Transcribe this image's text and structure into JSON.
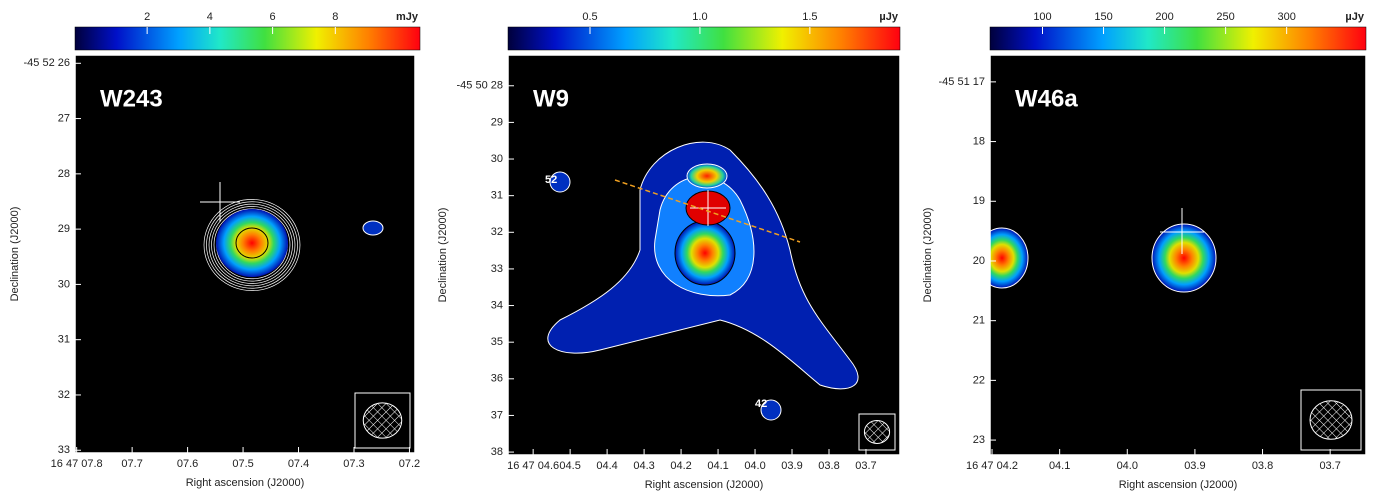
{
  "chart_data": [
    {
      "type": "image",
      "label": "W243",
      "x_label": "Right ascension (J2000)",
      "y_label": "Declination (J2000)",
      "colorbar_unit": "mJy",
      "clim": [
        -0.3,
        10.7
      ],
      "colorbar_ticks": [
        2,
        4,
        6,
        8
      ],
      "xlim": [
        7.803,
        7.19
      ],
      "xticks": [
        {
          "value": 7.8,
          "label": "16 47 07.8"
        },
        {
          "value": 7.7,
          "label": "07.7"
        },
        {
          "value": 7.6,
          "label": "07.6"
        },
        {
          "value": 7.5,
          "label": "07.5"
        },
        {
          "value": 7.4,
          "label": "07.4"
        },
        {
          "value": 7.3,
          "label": "07.3"
        },
        {
          "value": 7.2,
          "label": "07.2"
        }
      ],
      "ylim": [
        33.05,
        25.85
      ],
      "yticks": [
        {
          "value": 26,
          "label": "-45 52 26"
        },
        27,
        28,
        29,
        30,
        31,
        32,
        33
      ]
    },
    {
      "type": "image",
      "label": "W9",
      "x_label": "Right ascension (J2000)",
      "y_label": "Declination (J2000)",
      "colorbar_unit": "µJy",
      "clim": [
        0.127,
        1.91
      ],
      "colorbar_ticks": [
        0.5,
        {
          "value": 1,
          "label": "1.0"
        },
        1.5
      ],
      "xlim": [
        4.668,
        3.608
      ],
      "xticks": [
        {
          "value": 4.6,
          "label": "16 47 04.6"
        },
        {
          "value": 4.5,
          "label": "04.5"
        },
        {
          "value": 4.4,
          "label": "04.4"
        },
        {
          "value": 4.3,
          "label": "04.3"
        },
        {
          "value": 4.2,
          "label": "04.2"
        },
        {
          "value": 4.1,
          "label": "04.1"
        },
        {
          "value": 4.0,
          "label": "04.0"
        },
        {
          "value": 3.9,
          "label": "03.9"
        },
        {
          "value": 3.8,
          "label": "03.8"
        },
        {
          "value": 3.7,
          "label": "03.7"
        }
      ],
      "ylim": [
        38.08,
        27.16
      ],
      "yticks": [
        {
          "value": 28,
          "label": "-45 50 28"
        },
        29,
        30,
        31,
        32,
        33,
        34,
        35,
        36,
        37,
        38
      ],
      "annotations": [
        "52",
        "42"
      ]
    },
    {
      "type": "image",
      "label": "W46a",
      "x_label": "Right ascension (J2000)",
      "y_label": "Declination (J2000)",
      "colorbar_unit": "µJy",
      "clim": [
        57,
        365
      ],
      "colorbar_ticks": [
        100,
        150,
        200,
        250,
        300
      ],
      "xlim": [
        4.203,
        3.647
      ],
      "xticks": [
        {
          "value": 4.2,
          "label": "16 47 04.2"
        },
        {
          "value": 4.1,
          "label": "04.1"
        },
        {
          "value": 4.0,
          "label": "04.0"
        },
        {
          "value": 3.9,
          "label": "03.9"
        },
        {
          "value": 3.8,
          "label": "03.8"
        },
        {
          "value": 3.7,
          "label": "03.7"
        }
      ],
      "ylim": [
        23.25,
        16.55
      ],
      "yticks": [
        {
          "value": 17,
          "label": "-45 51 17"
        },
        18,
        19,
        20,
        21,
        22,
        23
      ]
    }
  ]
}
